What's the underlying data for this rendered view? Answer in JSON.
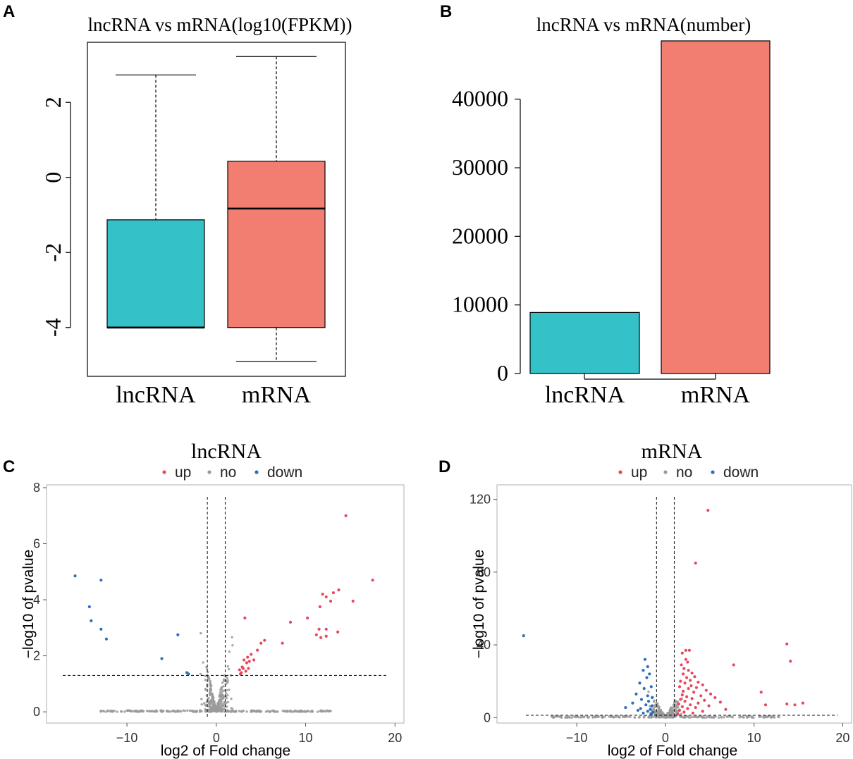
{
  "colors": {
    "lnc": "#35c1c8",
    "m": "#f27e72",
    "up": "#e8485c",
    "no": "#9a9a9a",
    "down": "#2c6fba"
  },
  "panels": {
    "a": "A",
    "b": "B",
    "c": "C",
    "d": "D"
  },
  "chart_data": [
    {
      "type": "box",
      "title": "lncRNA vs mRNA(log10(FPKM))",
      "categories": [
        "lncRNA",
        "mRNA"
      ],
      "ylim": [
        -5.3,
        3.6
      ],
      "yticks": [
        -4,
        -2,
        0,
        2
      ],
      "ytick_labels": [
        "-4",
        "-2",
        "0",
        "2"
      ],
      "boxes": [
        {
          "name": "lncRNA",
          "min": -4,
          "q1": -4,
          "median": -4,
          "q3": -1.13,
          "max": 2.73
        },
        {
          "name": "mRNA",
          "min": -4.9,
          "q1": -4,
          "median": -0.83,
          "q3": 0.43,
          "max": 3.22
        }
      ]
    },
    {
      "type": "bar",
      "title": "lncRNA vs mRNA(number)",
      "categories": [
        "lncRNA",
        "mRNA"
      ],
      "values": [
        8900,
        48500
      ],
      "ylim": [
        0,
        48500
      ],
      "yticks": [
        0,
        10000,
        20000,
        30000,
        40000
      ],
      "ytick_labels": [
        "0",
        "10000",
        "20000",
        "30000",
        "40000"
      ]
    },
    {
      "type": "scatter",
      "title": "lncRNA",
      "legend": [
        "up",
        "no",
        "down"
      ],
      "xlabel": "log2 of Fold change",
      "ylabel": "−log10 of pvalue",
      "xlim": [
        -19,
        21
      ],
      "ylim": [
        -0.4,
        8.1
      ],
      "xticks": [
        -10,
        0,
        10,
        20
      ],
      "xtick_labels": [
        "−10",
        "0",
        "10",
        "20"
      ],
      "yticks": [
        0,
        2,
        4,
        6,
        8
      ],
      "ytick_labels": [
        "0",
        "2",
        "4",
        "6",
        "8"
      ],
      "vlines": [
        -1,
        1
      ],
      "hline": 1.3,
      "up": [
        [
          14.5,
          7.0
        ],
        [
          17.5,
          4.7
        ],
        [
          15.3,
          3.95
        ],
        [
          13.7,
          4.35
        ],
        [
          13.1,
          4.25
        ],
        [
          12.8,
          3.95
        ],
        [
          12.3,
          4.1
        ],
        [
          11.9,
          4.2
        ],
        [
          11.6,
          3.75
        ],
        [
          12.3,
          2.95
        ],
        [
          11.5,
          2.95
        ],
        [
          11.2,
          2.75
        ],
        [
          12.3,
          2.7
        ],
        [
          11.7,
          2.65
        ],
        [
          13.6,
          2.85
        ],
        [
          8.3,
          3.2
        ],
        [
          10.2,
          3.35
        ],
        [
          3.2,
          3.35
        ],
        [
          7.4,
          2.45
        ],
        [
          5.4,
          2.55
        ],
        [
          5.0,
          2.45
        ],
        [
          4.6,
          2.2
        ],
        [
          3.9,
          2.05
        ],
        [
          3.5,
          1.95
        ],
        [
          4.2,
          1.85
        ],
        [
          3.4,
          1.75
        ],
        [
          3.0,
          1.55
        ],
        [
          3.3,
          1.45
        ],
        [
          2.8,
          1.4
        ],
        [
          2.9,
          1.6
        ],
        [
          3.7,
          1.8
        ],
        [
          3.1,
          1.85
        ],
        [
          2.7,
          1.35
        ],
        [
          3.6,
          1.55
        ],
        [
          2.6,
          1.5
        ]
      ],
      "down": [
        [
          -15.8,
          4.85
        ],
        [
          -12.9,
          4.7
        ],
        [
          -14.2,
          3.75
        ],
        [
          -14.0,
          3.25
        ],
        [
          -12.9,
          2.95
        ],
        [
          -12.3,
          2.6
        ],
        [
          -4.3,
          2.75
        ],
        [
          -6.1,
          1.9
        ],
        [
          -3.3,
          1.4
        ],
        [
          -3.1,
          1.35
        ]
      ]
    },
    {
      "type": "scatter",
      "title": "mRNA",
      "legend": [
        "up",
        "no",
        "down"
      ],
      "xlabel": "log2 of Fold change",
      "ylabel": "−log10 of pvalue",
      "xlim": [
        -19,
        21
      ],
      "ylim": [
        -3,
        128
      ],
      "xticks": [
        -10,
        0,
        10,
        20
      ],
      "xtick_labels": [
        "−10",
        "0",
        "10",
        "20"
      ],
      "yticks": [
        0,
        40,
        80,
        120
      ],
      "ytick_labels": [
        "0",
        "40",
        "80",
        "120"
      ],
      "vlines": [
        -1,
        1
      ],
      "hline": 1.3,
      "up": [
        [
          4.8,
          114
        ],
        [
          3.4,
          85
        ],
        [
          13.7,
          40.5
        ],
        [
          14.1,
          31
        ],
        [
          7.7,
          29
        ],
        [
          10.8,
          14
        ],
        [
          11.3,
          7
        ],
        [
          13.7,
          7.5
        ],
        [
          14.6,
          7
        ],
        [
          15.5,
          8
        ],
        [
          2.3,
          37
        ],
        [
          2.7,
          37
        ],
        [
          1.9,
          35.5
        ],
        [
          2.3,
          32
        ],
        [
          2.5,
          30.5
        ],
        [
          1.8,
          29
        ],
        [
          2.1,
          27
        ],
        [
          2.6,
          26
        ],
        [
          3.0,
          24.5
        ],
        [
          2.0,
          24
        ],
        [
          3.3,
          22.5
        ],
        [
          2.4,
          22
        ],
        [
          2.8,
          20.5
        ],
        [
          1.7,
          20
        ],
        [
          3.7,
          19.5
        ],
        [
          2.2,
          19
        ],
        [
          4.2,
          18
        ],
        [
          2.9,
          17.5
        ],
        [
          1.6,
          17
        ],
        [
          3.5,
          16.5
        ],
        [
          2.6,
          16
        ],
        [
          4.6,
          15
        ],
        [
          2.0,
          14.5
        ],
        [
          3.2,
          14
        ],
        [
          5.1,
          13
        ],
        [
          1.9,
          12.5
        ],
        [
          4.0,
          12
        ],
        [
          2.4,
          11.5
        ],
        [
          5.6,
          11
        ],
        [
          3.0,
          10.5
        ],
        [
          1.7,
          10
        ],
        [
          4.4,
          9.5
        ],
        [
          2.2,
          9
        ],
        [
          6.2,
          8.5
        ],
        [
          3.7,
          8
        ],
        [
          1.5,
          7.5
        ],
        [
          2.8,
          7
        ],
        [
          4.9,
          6.5
        ],
        [
          1.9,
          6
        ],
        [
          3.4,
          5.5
        ],
        [
          2.5,
          5
        ],
        [
          6.8,
          4.5
        ],
        [
          1.6,
          4
        ],
        [
          4.2,
          3.5
        ],
        [
          2.1,
          3
        ],
        [
          3.1,
          2.5
        ],
        [
          1.4,
          2
        ]
      ],
      "down": [
        [
          -16,
          45
        ],
        [
          -2.3,
          32
        ],
        [
          -2.0,
          28
        ],
        [
          -2.5,
          26
        ],
        [
          -1.8,
          24
        ],
        [
          -2.1,
          22
        ],
        [
          -2.9,
          19
        ],
        [
          -1.6,
          17
        ],
        [
          -2.4,
          16
        ],
        [
          -3.3,
          13
        ],
        [
          -2.0,
          12
        ],
        [
          -1.5,
          11
        ],
        [
          -2.7,
          10
        ],
        [
          -1.9,
          9
        ],
        [
          -3.7,
          8
        ],
        [
          -2.2,
          7
        ],
        [
          -1.5,
          6.5
        ],
        [
          -4.5,
          5.5
        ],
        [
          -2.8,
          5
        ],
        [
          -1.7,
          4.5
        ],
        [
          -3.1,
          4
        ],
        [
          -2.0,
          3.5
        ],
        [
          -1.4,
          3
        ],
        [
          -2.5,
          2.5
        ],
        [
          -1.6,
          2
        ]
      ]
    }
  ]
}
